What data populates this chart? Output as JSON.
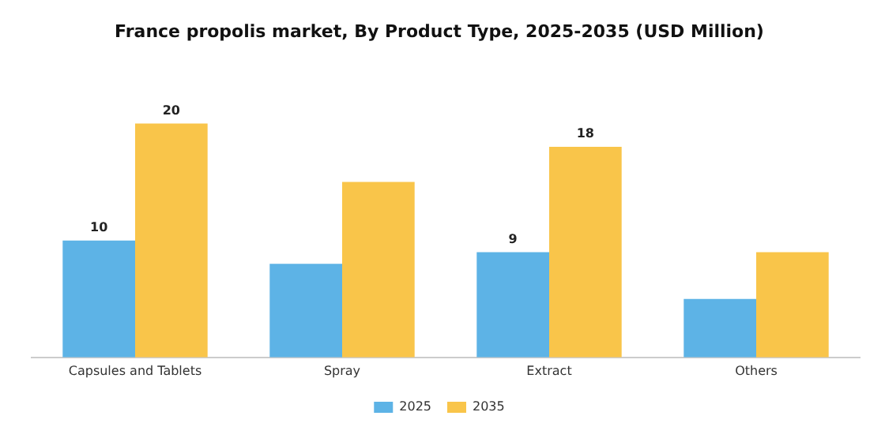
{
  "chart_data": {
    "type": "bar",
    "title": "France propolis market, By Product Type, 2025-2035 (USD Million)",
    "categories": [
      "Capsules and Tablets",
      "Spray",
      "Extract",
      "Others"
    ],
    "series": [
      {
        "name": "2025",
        "color": "#5db3e6",
        "values": [
          10,
          8,
          9,
          5
        ],
        "value_labels": [
          "10",
          null,
          "9",
          null
        ]
      },
      {
        "name": "2035",
        "color": "#f9c54a",
        "values": [
          20,
          15,
          18,
          9
        ],
        "value_labels": [
          "20",
          null,
          "18",
          null
        ]
      }
    ],
    "tick_labels": "x",
    "grid": false,
    "legend": "bottom"
  }
}
